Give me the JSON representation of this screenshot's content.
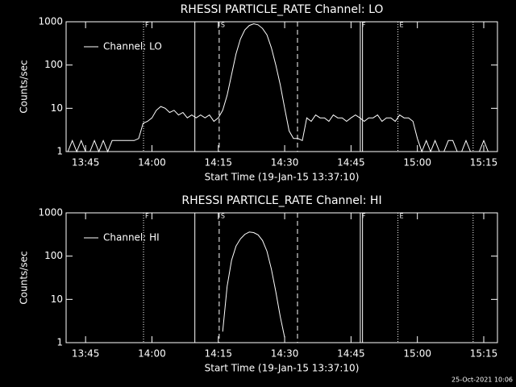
{
  "chart_data": [
    {
      "type": "line",
      "title": "RHESSI PARTICLE_RATE Channel: LO",
      "x_label": "Start Time (19-Jan-15 13:37:10)",
      "y_label": "Counts/sec",
      "log_y": true,
      "xlim": [
        820.6,
        918.1
      ],
      "xticks": [
        {
          "value": 825,
          "label": "13:45"
        },
        {
          "value": 840,
          "label": "14:00"
        },
        {
          "value": 855,
          "label": "14:15"
        },
        {
          "value": 870,
          "label": "14:30"
        },
        {
          "value": 885,
          "label": "14:45"
        },
        {
          "value": 900,
          "label": "15:00"
        },
        {
          "value": 915,
          "label": "15:15"
        }
      ],
      "ylim": [
        1,
        1000
      ],
      "yticks": [
        1,
        10,
        100,
        1000
      ],
      "legend": "upper left",
      "markers": [
        {
          "x": 838.1,
          "style": "dotted",
          "label": "F"
        },
        {
          "x": 849.7,
          "style": "solid"
        },
        {
          "x": 855.2,
          "style": "dashed",
          "label": "S"
        },
        {
          "x": 872.9,
          "style": "dashed"
        },
        {
          "x": 887.1,
          "style": "solid",
          "label": "F"
        },
        {
          "x": 887.6,
          "style": "solid"
        },
        {
          "x": 895.6,
          "style": "dotted",
          "label": "E"
        },
        {
          "x": 912.6,
          "style": "dotted"
        }
      ],
      "x": [
        821,
        822,
        823,
        824,
        825,
        826,
        827,
        828,
        829,
        830,
        831,
        832,
        833,
        834,
        835,
        836,
        837,
        838,
        839,
        840,
        841,
        842,
        843,
        844,
        845,
        846,
        847,
        848,
        849,
        850,
        851,
        852,
        853,
        854,
        855,
        856,
        857,
        858,
        859,
        860,
        861,
        862,
        863,
        864,
        865,
        866,
        867,
        868,
        869,
        870,
        871,
        872,
        873,
        874,
        875,
        876,
        877,
        878,
        879,
        880,
        881,
        882,
        883,
        884,
        885,
        886,
        887,
        888,
        889,
        890,
        891,
        892,
        893,
        894,
        895,
        896,
        897,
        898,
        899,
        900,
        901,
        902,
        903,
        904,
        905,
        906,
        907,
        908,
        909,
        910,
        911,
        912,
        913,
        914,
        915,
        916,
        917,
        918
      ],
      "series": [
        {
          "name": "Channel: LO",
          "color": "#ffffff",
          "values": [
            1,
            1.8,
            1,
            1.8,
            1,
            1,
            1.8,
            1,
            1.8,
            1,
            1.8,
            1.8,
            1.8,
            1.8,
            1.8,
            1.8,
            2,
            4.5,
            5,
            6,
            9,
            11,
            10,
            8,
            9,
            7,
            8,
            6,
            7,
            6,
            7,
            6,
            7,
            5,
            6,
            9,
            20,
            60,
            180,
            400,
            650,
            820,
            900,
            850,
            700,
            500,
            250,
            100,
            35,
            10,
            3,
            2,
            2,
            1.8,
            6,
            5,
            7,
            6,
            6,
            5,
            7,
            6,
            6,
            5,
            6,
            7,
            6,
            5,
            6,
            6,
            7,
            5,
            6,
            6,
            5,
            7,
            6,
            6,
            5,
            2,
            1,
            1.8,
            1,
            1.8,
            1,
            1,
            1.8,
            1.8,
            1,
            1,
            1.8,
            1,
            1,
            1,
            1.8,
            1,
            1,
            1
          ]
        }
      ]
    },
    {
      "type": "line",
      "title": "RHESSI PARTICLE_RATE Channel: HI",
      "x_label": "Start Time (19-Jan-15 13:37:10)",
      "y_label": "Counts/sec",
      "log_y": true,
      "xlim": [
        820.6,
        918.1
      ],
      "xticks": [
        {
          "value": 825,
          "label": "13:45"
        },
        {
          "value": 840,
          "label": "14:00"
        },
        {
          "value": 855,
          "label": "14:15"
        },
        {
          "value": 870,
          "label": "14:30"
        },
        {
          "value": 885,
          "label": "14:45"
        },
        {
          "value": 900,
          "label": "15:00"
        },
        {
          "value": 915,
          "label": "15:15"
        }
      ],
      "ylim": [
        1,
        1000
      ],
      "yticks": [
        1,
        10,
        100,
        1000
      ],
      "legend": "upper left",
      "markers": [
        {
          "x": 838.1,
          "style": "dotted",
          "label": "F"
        },
        {
          "x": 849.7,
          "style": "solid"
        },
        {
          "x": 855.2,
          "style": "dashed",
          "label": "S"
        },
        {
          "x": 872.9,
          "style": "dashed"
        },
        {
          "x": 887.1,
          "style": "solid",
          "label": "F"
        },
        {
          "x": 887.6,
          "style": "solid"
        },
        {
          "x": 895.6,
          "style": "dotted",
          "label": "E"
        },
        {
          "x": 912.6,
          "style": "dotted"
        }
      ],
      "x": [
        856,
        857,
        858,
        859,
        860,
        861,
        862,
        863,
        864,
        865,
        866,
        867,
        868,
        869,
        870
      ],
      "series": [
        {
          "name": "Channel: HI",
          "color": "#ffffff",
          "values": [
            1.8,
            20,
            80,
            170,
            250,
            320,
            360,
            350,
            310,
            230,
            130,
            50,
            15,
            4,
            1.3
          ]
        }
      ]
    }
  ],
  "footer": "25-Oct-2021 10:06"
}
